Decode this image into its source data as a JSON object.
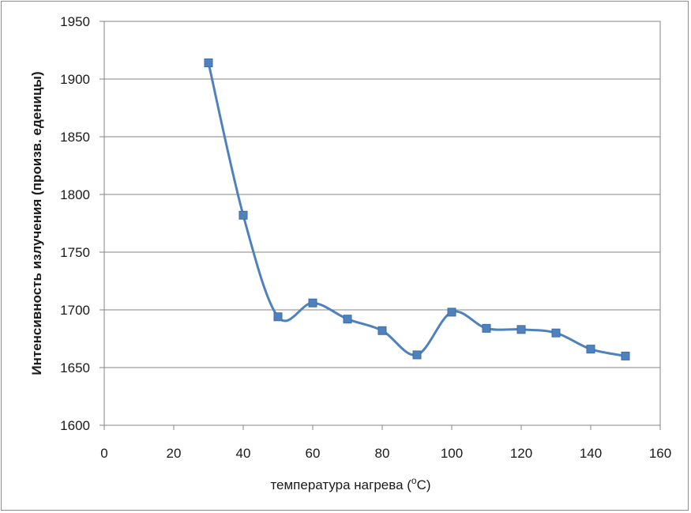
{
  "chart_data": {
    "type": "line",
    "title": "",
    "xlabel": "температура нагрева (",
    "xlabel_superscript": "о",
    "xlabel_suffix": "С)",
    "ylabel": "Интенсивность излучения (произв. еденицы)",
    "xlim": [
      0,
      160
    ],
    "ylim": [
      1600,
      1950
    ],
    "x_ticks": [
      0,
      20,
      40,
      60,
      80,
      100,
      120,
      140,
      160
    ],
    "y_ticks": [
      1600,
      1650,
      1700,
      1750,
      1800,
      1850,
      1900,
      1950
    ],
    "grid": "horizontal",
    "legend": "none",
    "smooth": true,
    "line_color": "#4f81bd",
    "marker_color": "#4f81bd",
    "marker": "square",
    "series": [
      {
        "x": [
          30,
          40,
          50,
          60,
          70,
          80,
          90,
          100,
          110,
          120,
          130,
          140,
          150
        ],
        "y": [
          1914,
          1782,
          1694,
          1706,
          1692,
          1682,
          1661,
          1698,
          1684,
          1683,
          1680,
          1666,
          1660
        ]
      }
    ]
  }
}
